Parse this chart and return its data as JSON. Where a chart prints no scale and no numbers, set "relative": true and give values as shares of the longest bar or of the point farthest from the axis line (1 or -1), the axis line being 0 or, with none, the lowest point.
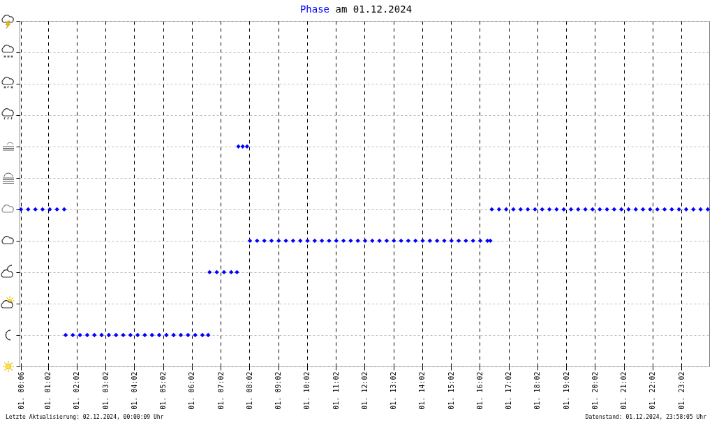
{
  "chart_data": {
    "type": "scatter",
    "title": "Phase am 01.12.2024",
    "annotations": [
      "Letzte Aktualisierung: 02.12.2024, 00:00:09 Uhr",
      "Datenstand: 01.12.2024, 23:58:05 Uhr"
    ],
    "x": [
      "2024-12-01T00:06",
      "2024-12-01T00:21",
      "2024-12-01T00:36",
      "2024-12-01T00:51",
      "2024-12-01T01:06",
      "2024-12-01T01:21",
      "2024-12-01T01:36",
      "2024-12-01T01:39",
      "2024-12-01T01:54",
      "2024-12-01T02:09",
      "2024-12-01T02:24",
      "2024-12-01T02:39",
      "2024-12-01T02:54",
      "2024-12-01T03:09",
      "2024-12-01T03:24",
      "2024-12-01T03:39",
      "2024-12-01T03:54",
      "2024-12-01T04:09",
      "2024-12-01T04:24",
      "2024-12-01T04:39",
      "2024-12-01T04:54",
      "2024-12-01T05:09",
      "2024-12-01T05:24",
      "2024-12-01T05:39",
      "2024-12-01T05:54",
      "2024-12-01T06:09",
      "2024-12-01T06:24",
      "2024-12-01T06:36",
      "2024-12-01T06:39",
      "2024-12-01T06:54",
      "2024-12-01T07:09",
      "2024-12-01T07:24",
      "2024-12-01T07:36",
      "2024-12-01T07:39",
      "2024-12-01T07:48",
      "2024-12-01T07:57",
      "2024-12-01T08:03",
      "2024-12-01T08:18",
      "2024-12-01T08:33",
      "2024-12-01T08:48",
      "2024-12-01T09:03",
      "2024-12-01T09:18",
      "2024-12-01T09:33",
      "2024-12-01T09:48",
      "2024-12-01T10:03",
      "2024-12-01T10:18",
      "2024-12-01T10:33",
      "2024-12-01T10:48",
      "2024-12-01T11:03",
      "2024-12-01T11:18",
      "2024-12-01T11:33",
      "2024-12-01T11:48",
      "2024-12-01T12:03",
      "2024-12-01T12:18",
      "2024-12-01T12:33",
      "2024-12-01T12:48",
      "2024-12-01T13:03",
      "2024-12-01T13:18",
      "2024-12-01T13:33",
      "2024-12-01T13:48",
      "2024-12-01T14:03",
      "2024-12-01T14:18",
      "2024-12-01T14:33",
      "2024-12-01T14:48",
      "2024-12-01T15:03",
      "2024-12-01T15:18",
      "2024-12-01T15:33",
      "2024-12-01T15:48",
      "2024-12-01T16:03",
      "2024-12-01T16:18",
      "2024-12-01T16:24",
      "2024-12-01T16:27",
      "2024-12-01T16:42",
      "2024-12-01T16:57",
      "2024-12-01T17:12",
      "2024-12-01T17:27",
      "2024-12-01T17:42",
      "2024-12-01T17:57",
      "2024-12-01T18:12",
      "2024-12-01T18:27",
      "2024-12-01T18:42",
      "2024-12-01T18:57",
      "2024-12-01T19:12",
      "2024-12-01T19:27",
      "2024-12-01T19:42",
      "2024-12-01T19:57",
      "2024-12-01T20:12",
      "2024-12-01T20:27",
      "2024-12-01T20:42",
      "2024-12-01T20:57",
      "2024-12-01T21:12",
      "2024-12-01T21:27",
      "2024-12-01T21:42",
      "2024-12-01T21:57",
      "2024-12-01T22:12",
      "2024-12-01T22:27",
      "2024-12-01T22:42",
      "2024-12-01T22:57",
      "2024-12-01T23:12",
      "2024-12-01T23:27",
      "2024-12-01T23:42",
      "2024-12-01T23:57"
    ],
    "series": [
      {
        "color": "#0000ff",
        "values": [
          0.7143,
          0.7143,
          0.7143,
          0.7143,
          0.7143,
          0.7143,
          0.7143,
          0.1429,
          0.1429,
          0.1429,
          0.1429,
          0.1429,
          0.1429,
          0.1429,
          0.1429,
          0.1429,
          0.1429,
          0.1429,
          0.1429,
          0.1429,
          0.1429,
          0.1429,
          0.1429,
          0.1429,
          0.1429,
          0.1429,
          0.1429,
          0.1429,
          0.4286,
          0.4286,
          0.4286,
          0.4286,
          0.4286,
          1,
          1,
          1,
          0.5714,
          0.5714,
          0.5714,
          0.5714,
          0.5714,
          0.5714,
          0.5714,
          0.5714,
          0.5714,
          0.5714,
          0.5714,
          0.5714,
          0.5714,
          0.5714,
          0.5714,
          0.5714,
          0.5714,
          0.5714,
          0.5714,
          0.5714,
          0.5714,
          0.5714,
          0.5714,
          0.5714,
          0.5714,
          0.5714,
          0.5714,
          0.5714,
          0.5714,
          0.5714,
          0.5714,
          0.5714,
          0.5714,
          0.5714,
          0.5714,
          0.7143,
          0.7143,
          0.7143,
          0.7143,
          0.7143,
          0.7143,
          0.7143,
          0.7143,
          0.7143,
          0.7143,
          0.7143,
          0.7143,
          0.7143,
          0.7143,
          0.7143,
          0.7143,
          0.7143,
          0.7143,
          0.7143,
          0.7143,
          0.7143,
          0.7143,
          0.7143,
          0.7143,
          0.7143,
          0.7143,
          0.7143,
          0.7143,
          0.7143,
          0.7143,
          0.7143
        ]
      }
    ],
    "relative": true,
    "marker": "diamond",
    "grid": true,
    "xlim": [
      "2024-12-01T00:03",
      "2024-12-02T00:00"
    ],
    "xticks": [
      {
        "value": "2024-12-01T00:06",
        "label": "01. 00:06"
      },
      {
        "value": "2024-12-01T01:02",
        "label": "01. 01:02"
      },
      {
        "value": "2024-12-01T02:02",
        "label": "01. 02:02"
      },
      {
        "value": "2024-12-01T03:02",
        "label": "01. 03:02"
      },
      {
        "value": "2024-12-01T04:02",
        "label": "01. 04:02"
      },
      {
        "value": "2024-12-01T05:02",
        "label": "01. 05:02"
      },
      {
        "value": "2024-12-01T06:02",
        "label": "01. 06:02"
      },
      {
        "value": "2024-12-01T07:02",
        "label": "01. 07:02"
      },
      {
        "value": "2024-12-01T08:02",
        "label": "01. 08:02"
      },
      {
        "value": "2024-12-01T09:02",
        "label": "01. 09:02"
      },
      {
        "value": "2024-12-01T10:02",
        "label": "01. 10:02"
      },
      {
        "value": "2024-12-01T11:02",
        "label": "01. 11:02"
      },
      {
        "value": "2024-12-01T12:02",
        "label": "01. 12:02"
      },
      {
        "value": "2024-12-01T13:02",
        "label": "01. 13:02"
      },
      {
        "value": "2024-12-01T14:02",
        "label": "01. 14:02"
      },
      {
        "value": "2024-12-01T15:02",
        "label": "01. 15:02"
      },
      {
        "value": "2024-12-01T16:02",
        "label": "01. 16:02"
      },
      {
        "value": "2024-12-01T17:02",
        "label": "01. 17:02"
      },
      {
        "value": "2024-12-01T18:02",
        "label": "01. 18:02"
      },
      {
        "value": "2024-12-01T19:02",
        "label": "01. 19:02"
      },
      {
        "value": "2024-12-01T20:02",
        "label": "01. 20:02"
      },
      {
        "value": "2024-12-01T21:02",
        "label": "01. 21:02"
      },
      {
        "value": "2024-12-01T22:02",
        "label": "01. 22:02"
      },
      {
        "value": "2024-12-01T23:02",
        "label": "01. 23:02"
      }
    ],
    "tick_labels": "x"
  }
}
